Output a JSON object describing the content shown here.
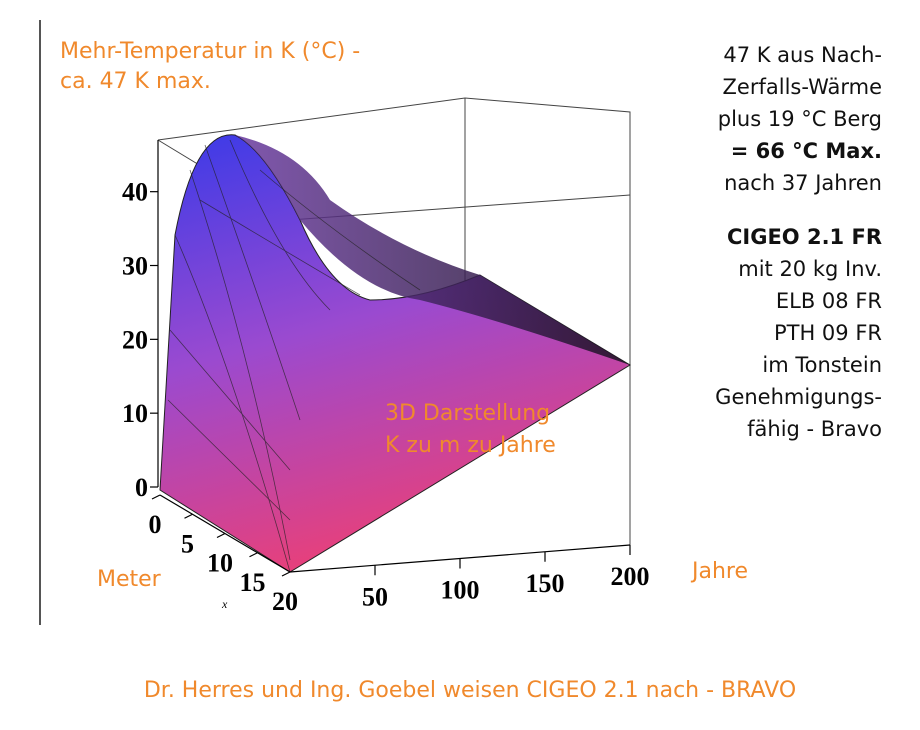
{
  "chart_data": {
    "type": "surface3d",
    "title_lines": [
      "Mehr-Temperatur in K (°C) -",
      "ca. 47 K max."
    ],
    "xlabel": "Jahre",
    "ylabel": "Meter",
    "ysymbol": "x",
    "xlim": [
      0,
      200
    ],
    "xticks": [
      50,
      100,
      150,
      200
    ],
    "ylim": [
      0,
      20
    ],
    "yticks": [
      0,
      5,
      10,
      15,
      20
    ],
    "zlim": [
      0,
      47
    ],
    "zticks": [
      0,
      10,
      20,
      30,
      40
    ],
    "annotation_lines": [
      "3D Darstellung",
      "K zu m zu Jahre"
    ],
    "notes": [
      {
        "text": "47 K aus Nach-",
        "bold": false
      },
      {
        "text": "Zerfalls-Wärme",
        "bold": false
      },
      {
        "text": "plus 19 °C Berg",
        "bold": false
      },
      {
        "text": "= 66 °C Max.",
        "bold": true
      },
      {
        "text": "nach 37 Jahren",
        "bold": false
      },
      {
        "text": "CIGEO 2.1 FR",
        "bold": true
      },
      {
        "text": "mit 20 kg Inv.",
        "bold": false
      },
      {
        "text": "ELB 08 FR",
        "bold": false
      },
      {
        "text": "PTH 09 FR",
        "bold": false
      },
      {
        "text": "im Tonstein",
        "bold": false
      },
      {
        "text": "Genehmigungs-",
        "bold": false
      },
      {
        "text": "fähig - Bravo",
        "bold": false
      }
    ],
    "caption": "Dr. Herres und Ing. Goebel weisen CIGEO 2.1 nach - BRAVO"
  }
}
